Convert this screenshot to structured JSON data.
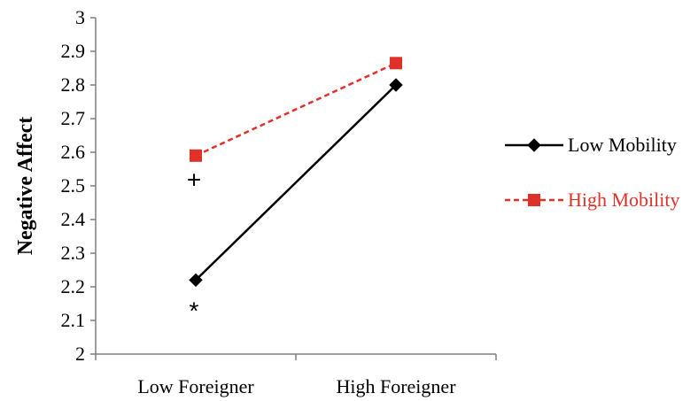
{
  "chart_data": {
    "type": "line",
    "title": "",
    "xlabel": "",
    "ylabel": "Negative Affect",
    "ylim": [
      2,
      3
    ],
    "yticks": [
      "2",
      "2.1",
      "2.2",
      "2.3",
      "2.4",
      "2.5",
      "2.6",
      "2.7",
      "2.8",
      "2.9",
      "3"
    ],
    "categories": [
      "Low Foreigner",
      "High Foreigner"
    ],
    "grid": false,
    "legend_position": "right",
    "series": [
      {
        "name": "Low Mobility",
        "values": [
          2.22,
          2.8
        ],
        "color": "#000000",
        "marker": "diamond",
        "line_style": "solid"
      },
      {
        "name": "High Mobility",
        "values": [
          2.59,
          2.865
        ],
        "color": "#e0302a",
        "marker": "square",
        "line_style": "dashed"
      }
    ],
    "annotations": [
      {
        "text": "+",
        "category": "Low Foreigner",
        "y": 2.52
      },
      {
        "text": "*",
        "category": "Low Foreigner",
        "y": 2.13
      }
    ]
  }
}
